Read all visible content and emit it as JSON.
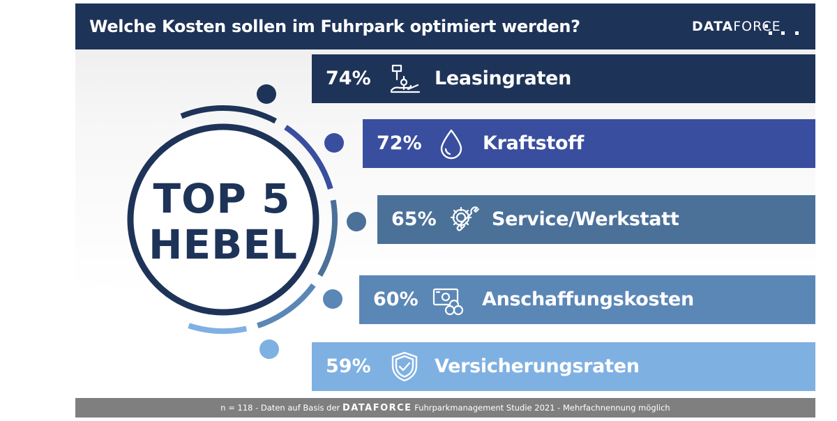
{
  "header": {
    "title": "Welche Kosten sollen im Fuhrpark optimiert werden?",
    "logo_bold": "DATA",
    "logo_light": "FORCE"
  },
  "badge": {
    "line1": "TOP 5",
    "line2": "HEBEL"
  },
  "colors": {
    "header_bg": "#1e3358",
    "bar_1": "#1e3358",
    "bar_2": "#3a4ea0",
    "bar_3": "#4b7199",
    "bar_4": "#5b87b6",
    "bar_5": "#7fb0e2",
    "footer_bg": "#7f7f7f"
  },
  "chart_data": {
    "type": "bar",
    "orientation": "horizontal",
    "title": "Welche Kosten sollen im Fuhrpark optimiert werden?",
    "unit": "%",
    "categories": [
      "Leasingraten",
      "Kraftstoff",
      "Service/Werkstatt",
      "Anschaffungskosten",
      "Versicherungsraten"
    ],
    "values": [
      74,
      72,
      65,
      60,
      59
    ],
    "labels": [
      "74%",
      "72%",
      "65%",
      "60%",
      "59%"
    ],
    "icons": [
      "hand-key-icon",
      "fuel-drop-icon",
      "gear-wrench-icon",
      "money-coins-icon",
      "shield-check-icon"
    ]
  },
  "footer": {
    "prefix": "n = 118  - Daten auf Basis der ",
    "brand": "DATAFORCE",
    "suffix": " Fuhrparkmanagement Studie 2021 - Mehrfachnennung möglich"
  }
}
